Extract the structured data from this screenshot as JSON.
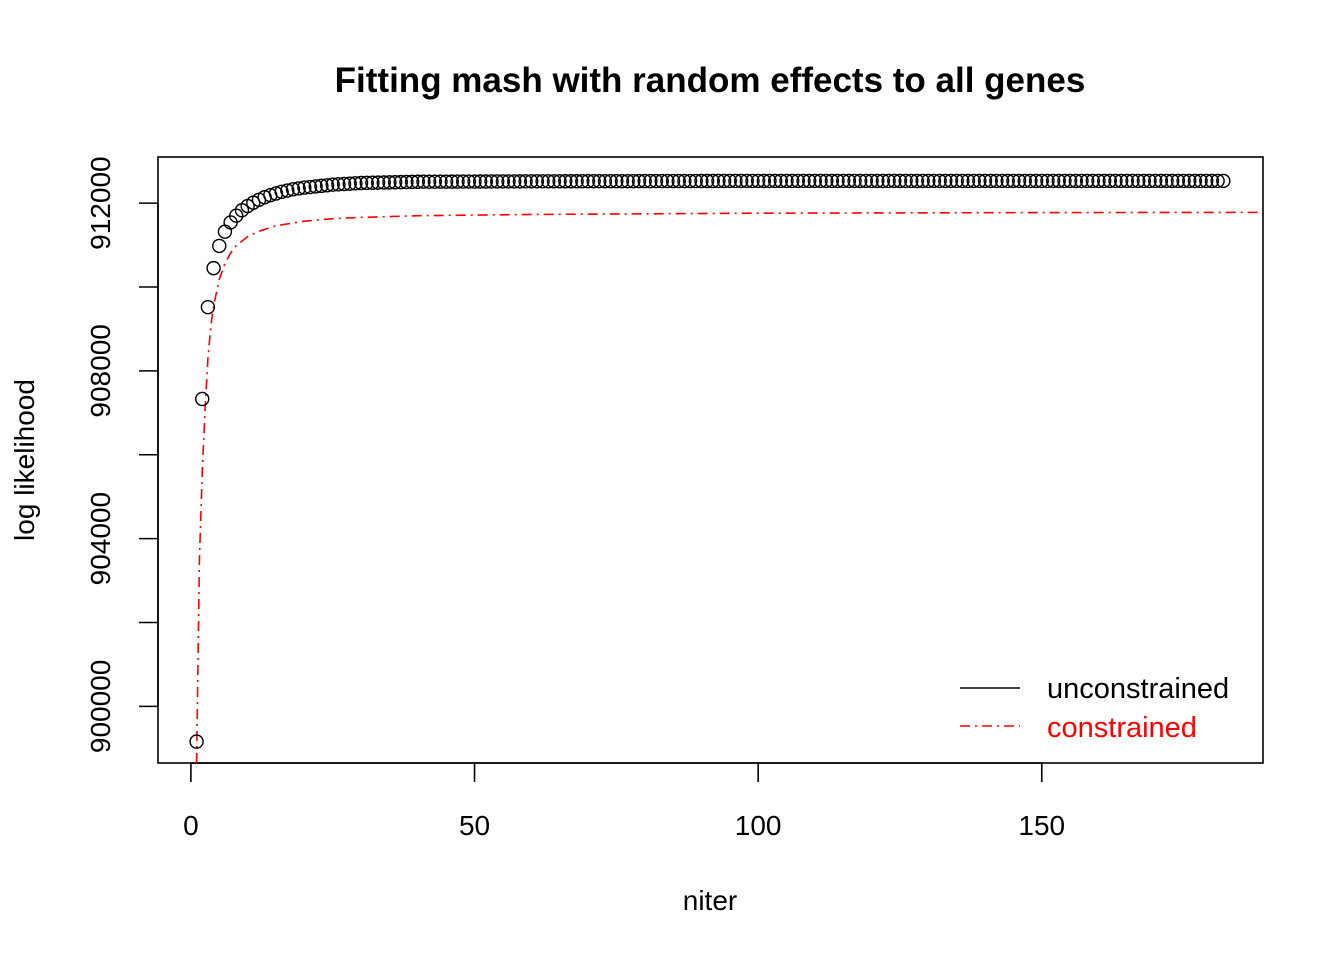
{
  "chart_data": {
    "type": "scatter",
    "title": "Fitting mash with random effects to all genes",
    "xlabel": "niter",
    "ylabel": "log likelihood",
    "xlim": [
      -5.8,
      189
    ],
    "ylim": [
      898650,
      913100
    ],
    "x_ticks": [
      0,
      50,
      100,
      150
    ],
    "x_tick_labels": [
      "0",
      "50",
      "100",
      "150"
    ],
    "y_ticks": [
      900000,
      902000,
      904000,
      906000,
      908000,
      910000,
      912000
    ],
    "y_tick_labels": [
      "900000",
      "",
      "904000",
      "",
      "908000",
      "",
      "912000"
    ],
    "grid": false,
    "legend": {
      "position": "bottom-right",
      "entries": [
        {
          "label": "unconstrained",
          "color": "#000000",
          "line": "solid"
        },
        {
          "label": "constrained",
          "color": "#FF0000",
          "line": "dashdot"
        }
      ]
    },
    "series": [
      {
        "name": "unconstrained",
        "type": "points",
        "marker": "open-circle",
        "color": "#000000",
        "x_range": [
          1,
          182
        ],
        "points": [
          [
            1,
            899160
          ],
          [
            2,
            907330
          ],
          [
            3,
            909520
          ],
          [
            4,
            910450
          ],
          [
            5,
            910980
          ],
          [
            6,
            911320
          ],
          [
            7,
            911540
          ],
          [
            8,
            911700
          ],
          [
            9,
            911830
          ],
          [
            10,
            911930
          ],
          [
            11,
            912010
          ],
          [
            12,
            912080
          ],
          [
            13,
            912140
          ],
          [
            14,
            912190
          ],
          [
            15,
            912230
          ],
          [
            16,
            912270
          ],
          [
            17,
            912300
          ],
          [
            18,
            912330
          ],
          [
            20,
            912370
          ],
          [
            25,
            912440
          ],
          [
            30,
            912480
          ],
          [
            40,
            912510
          ],
          [
            60,
            912520
          ],
          [
            100,
            912530
          ],
          [
            182,
            912530
          ]
        ]
      },
      {
        "name": "constrained",
        "type": "line",
        "color": "#FF0000",
        "line": "dashdot",
        "points": [
          [
            1,
            898650
          ],
          [
            1.5,
            903500
          ],
          [
            2,
            905600
          ],
          [
            2.5,
            907100
          ],
          [
            3,
            908300
          ],
          [
            3.5,
            909050
          ],
          [
            4,
            909550
          ],
          [
            5,
            910180
          ],
          [
            6,
            910560
          ],
          [
            7,
            910810
          ],
          [
            8,
            910990
          ],
          [
            10,
            911200
          ],
          [
            12,
            911330
          ],
          [
            15,
            911460
          ],
          [
            20,
            911570
          ],
          [
            25,
            911630
          ],
          [
            30,
            911660
          ],
          [
            40,
            911700
          ],
          [
            60,
            911730
          ],
          [
            100,
            911760
          ],
          [
            150,
            911775
          ],
          [
            189,
            911780
          ]
        ]
      }
    ]
  }
}
